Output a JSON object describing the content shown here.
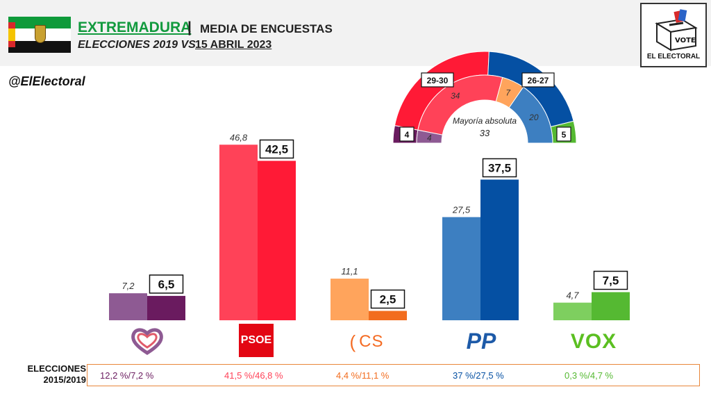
{
  "header": {
    "region": "EXTREMADURA",
    "separator": "|",
    "subtitle": "MEDIA DE ENCUESTAS",
    "line2": "ELECCIONES 2019 VS",
    "date": "15 ABRIL 2023"
  },
  "logo": {
    "vote_text": "VOTE",
    "brand": "EL ELECTORAL"
  },
  "handle": "@ElElectoral",
  "colors": {
    "up_prev": "#8e5a93",
    "up_now": "#6a1b5f",
    "psoe_prev": "#ff4258",
    "psoe_now": "#ff1a36",
    "cs_prev": "#ffa45c",
    "cs_now": "#f26d1f",
    "pp_prev": "#3d7fc1",
    "pp_now": "#0550a3",
    "vox_prev": "#7ecf5f",
    "vox_now": "#55b932"
  },
  "chart_data": [
    {
      "type": "bar",
      "categories": [
        "Unidas Podemos",
        "PSOE",
        "CS",
        "PP",
        "VOX"
      ],
      "series": [
        {
          "name": "2019",
          "values": [
            7.2,
            46.8,
            11.1,
            27.5,
            4.7
          ],
          "labels": [
            "7,2",
            "46,8",
            "11,1",
            "27,5",
            "4,7"
          ]
        },
        {
          "name": "15 abril 2023",
          "values": [
            6.5,
            42.5,
            2.5,
            37.5,
            7.5
          ],
          "labels": [
            "6,5",
            "42,5",
            "2,5",
            "37,5",
            "7,5"
          ]
        }
      ],
      "ylim": [
        0,
        50
      ],
      "grid": false
    },
    {
      "type": "pie",
      "subtype": "hemicycle",
      "center_label": "Mayoría absoluta",
      "center_value": "33",
      "inner_ring": {
        "labels": [
          "UP",
          "PSOE",
          "CS",
          "PP",
          "VOX"
        ],
        "values": [
          4,
          34,
          7,
          20,
          0
        ],
        "value_labels": [
          "4",
          "34",
          "7",
          "20",
          ""
        ]
      },
      "outer_ring": {
        "labels": [
          "UP",
          "PSOE",
          "PP",
          "VOX"
        ],
        "values": [
          4,
          29.5,
          26.5,
          5
        ],
        "value_labels": [
          "4",
          "29-30",
          "26-27",
          "5"
        ]
      }
    }
  ],
  "parties": {
    "psoe_logo": "PSOE",
    "cs_logo": "CS",
    "pp_logo": "PP",
    "vox_logo": "VOX"
  },
  "footer": {
    "label": "ELECCIONES 2015/2019",
    "values": [
      "12,2 %/7,2 %",
      "41,5 %/46,8 %",
      "4,4 %/11,1 %",
      "37 %/27,5 %",
      "0,3 %/4,7 %"
    ],
    "colors": [
      "#6a1b5f",
      "#ff4258",
      "#f26d1f",
      "#0550a3",
      "#55b932"
    ]
  }
}
